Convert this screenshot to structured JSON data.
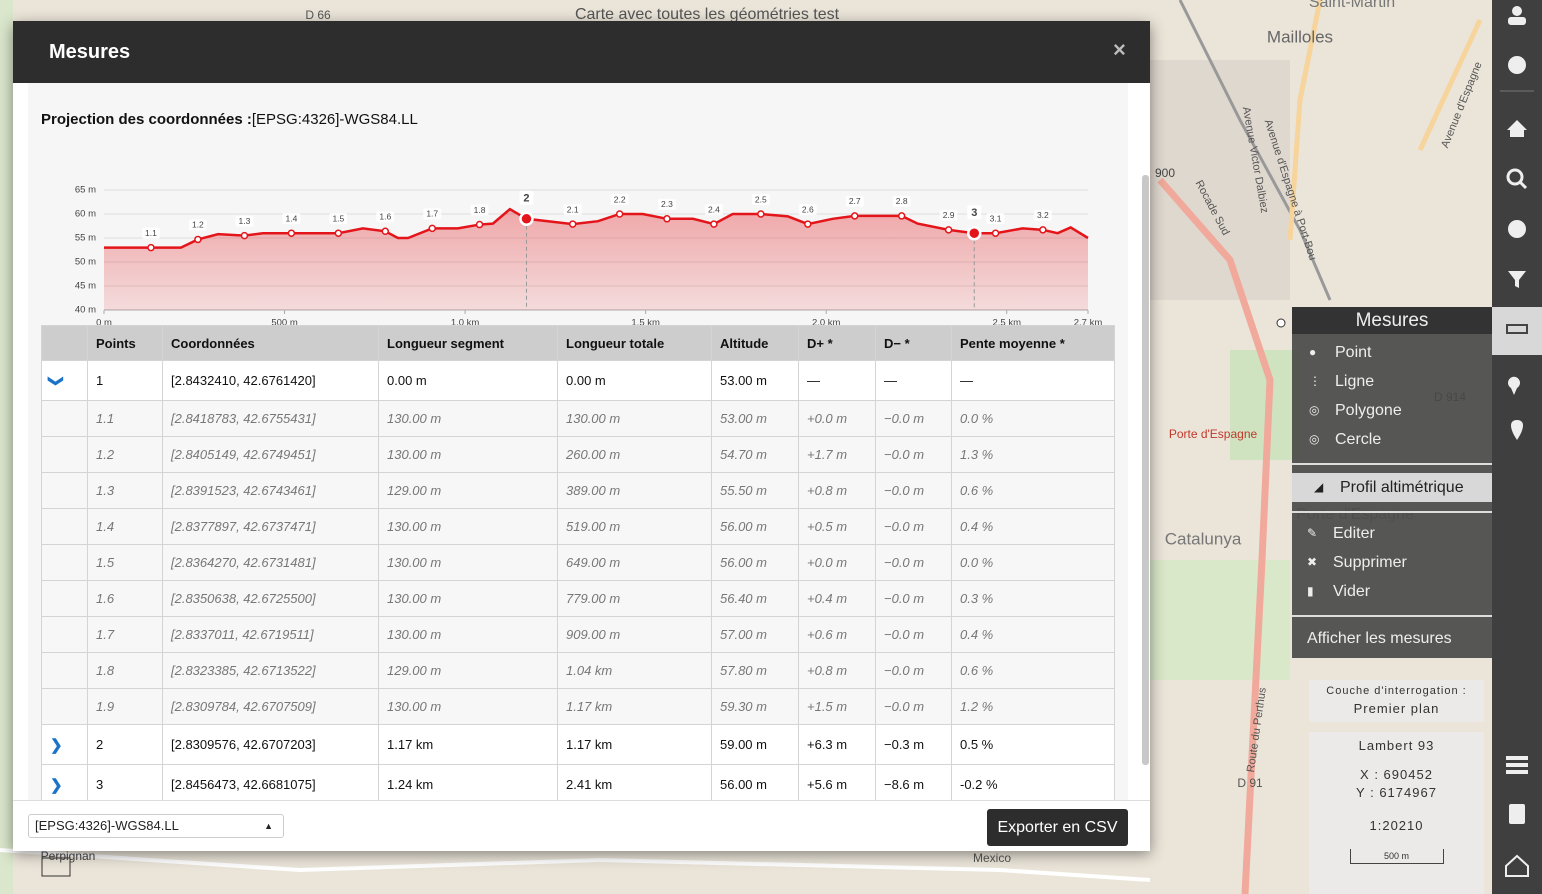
{
  "map": {
    "labels": [
      "Carte avec toutes les géométries test",
      "D 66",
      "Saint-Martin",
      "Mailloles",
      "900",
      "Rocade Sud",
      "Avenue Victor Dalbiez",
      "Avenue d'Espagne à Port-Bou",
      "Avenue d'Espagne",
      "D 914",
      "Porte d'Espagne",
      "Porte d'Espagne",
      "Catalunya",
      "Route du Perthus",
      "D 91",
      "Perpignan",
      "Mexico"
    ]
  },
  "measure_menu": {
    "title": "Mesures",
    "items": [
      "Point",
      "Ligne",
      "Polygone",
      "Cercle"
    ],
    "profile": "Profil altimétrique",
    "edit_items": [
      "Editer",
      "Supprimer",
      "Vider"
    ],
    "show": "Afficher les mesures"
  },
  "info": {
    "layer_label": "Couche d'interrogation :",
    "layer": "Premier plan",
    "projection": "Lambert 93",
    "x": "X : 690452",
    "y": "Y : 6174967",
    "scale": "1:20210",
    "scalebar": "500 m"
  },
  "modal": {
    "title": "Mesures",
    "close": "×",
    "projection_label": "Projection des coordonnées :",
    "projection": "[EPSG:4326]-WGS84.LL",
    "select": "[EPSG:4326]-WGS84.LL",
    "export": "Exporter en CSV"
  },
  "chart_data": {
    "type": "area",
    "color": "#e3151a",
    "xlim": [
      0,
      2725
    ],
    "ylim": [
      40,
      65
    ],
    "xticks": [
      {
        "value": 0,
        "label": "0 m"
      },
      {
        "value": 500,
        "label": "500 m"
      },
      {
        "value": 1000,
        "label": "1.0 km"
      },
      {
        "value": 1500,
        "label": "1.5 km"
      },
      {
        "value": 2000,
        "label": "2.0 km"
      },
      {
        "value": 2500,
        "label": "2.5 km"
      },
      {
        "value": 2725,
        "label": "2.7 km"
      }
    ],
    "yticks": [
      {
        "value": 40,
        "label": "40 m"
      },
      {
        "value": 45,
        "label": "45 m"
      },
      {
        "value": 50,
        "label": "50 m"
      },
      {
        "value": 55,
        "label": "55 m"
      },
      {
        "value": 60,
        "label": "60 m"
      },
      {
        "value": 65,
        "label": "65 m"
      }
    ],
    "grid": true,
    "x": [
      0,
      130,
      213,
      260,
      316,
      389,
      440,
      519,
      649,
      717,
      779,
      814,
      842,
      909,
      980,
      1040,
      1077,
      1124,
      1170,
      1298,
      1368,
      1428,
      1492,
      1559,
      1631,
      1689,
      1741,
      1819,
      1894,
      1949,
      2018,
      2079,
      2209,
      2253,
      2339,
      2410,
      2469,
      2544,
      2600,
      2641,
      2677,
      2725
    ],
    "values": [
      53,
      53,
      53,
      54.7,
      55.8,
      55.5,
      56,
      56,
      56,
      57,
      56.4,
      55,
      55,
      57,
      57,
      57.8,
      58,
      61,
      59,
      57.9,
      58.5,
      60,
      60,
      59,
      59,
      57.9,
      60,
      60,
      59.5,
      57.9,
      59,
      59.6,
      59.6,
      58,
      56.7,
      56,
      56,
      57,
      56.7,
      56,
      57.2,
      55
    ],
    "markers": {
      "labels": [
        "1.1",
        "1.2",
        "1.3",
        "1.4",
        "1.5",
        "1.6",
        "1.7",
        "1.8",
        "2",
        "2.1",
        "2.2",
        "2.3",
        "2.4",
        "2.5",
        "2.6",
        "2.7",
        "2.8",
        "2.9",
        "3",
        "3.1",
        "3.2"
      ],
      "x": [
        130,
        260,
        389,
        519,
        649,
        779,
        909,
        1040,
        1170,
        1298,
        1428,
        1559,
        1689,
        1819,
        1949,
        2079,
        2209,
        2339,
        2410,
        2469,
        2600
      ],
      "values": [
        53,
        54.7,
        55.5,
        56,
        56,
        56.4,
        57,
        57.8,
        59,
        57.9,
        60,
        59,
        57.9,
        60,
        57.9,
        59.6,
        59.6,
        56.7,
        56,
        56,
        56.7
      ],
      "major": [
        "2",
        "3"
      ]
    }
  },
  "table": {
    "headers": [
      "Points",
      "Coordonnées",
      "Longueur segment",
      "Longueur totale",
      "Altitude",
      "D+ *",
      "D− *",
      "Pente moyenne *"
    ],
    "points": [
      {
        "cells": [
          "1",
          "[2.8432410, 42.6761420]",
          "0.00 m",
          "0.00 m",
          "53.00 m",
          "—",
          "—",
          "—"
        ],
        "details": [
          [
            "1.1",
            "[2.8418783, 42.6755431]",
            "130.00 m",
            "130.00 m",
            "53.00 m",
            "+0.0 m",
            "−0.0 m",
            "0.0 %"
          ],
          [
            "1.2",
            "[2.8405149, 42.6749451]",
            "130.00 m",
            "260.00 m",
            "54.70 m",
            "+1.7 m",
            "−0.0 m",
            "1.3 %"
          ],
          [
            "1.3",
            "[2.8391523, 42.6743461]",
            "129.00 m",
            "389.00 m",
            "55.50 m",
            "+0.8 m",
            "−0.0 m",
            "0.6 %"
          ],
          [
            "1.4",
            "[2.8377897, 42.6737471]",
            "130.00 m",
            "519.00 m",
            "56.00 m",
            "+0.5 m",
            "−0.0 m",
            "0.4 %"
          ],
          [
            "1.5",
            "[2.8364270, 42.6731481]",
            "130.00 m",
            "649.00 m",
            "56.00 m",
            "+0.0 m",
            "−0.0 m",
            "0.0 %"
          ],
          [
            "1.6",
            "[2.8350638, 42.6725500]",
            "130.00 m",
            "779.00 m",
            "56.40 m",
            "+0.4 m",
            "−0.0 m",
            "0.3 %"
          ],
          [
            "1.7",
            "[2.8337011, 42.6719511]",
            "130.00 m",
            "909.00 m",
            "57.00 m",
            "+0.6 m",
            "−0.0 m",
            "0.4 %"
          ],
          [
            "1.8",
            "[2.8323385, 42.6713522]",
            "129.00 m",
            "1.04 km",
            "57.80 m",
            "+0.8 m",
            "−0.0 m",
            "0.6 %"
          ],
          [
            "1.9",
            "[2.8309784, 42.6707509]",
            "130.00 m",
            "1.17 km",
            "59.30 m",
            "+1.5 m",
            "−0.0 m",
            "1.2 %"
          ]
        ]
      },
      {
        "cells": [
          "2",
          "[2.8309576, 42.6707203]",
          "1.17 km",
          "1.17 km",
          "59.00 m",
          "+6.3 m",
          "−0.3 m",
          "0.5 %"
        ]
      },
      {
        "cells": [
          "3",
          "[2.8456473, 42.6681075]",
          "1.24 km",
          "2.41 km",
          "56.00 m",
          "+5.6 m",
          "−8.6 m",
          "-0.2 %"
        ]
      }
    ]
  }
}
